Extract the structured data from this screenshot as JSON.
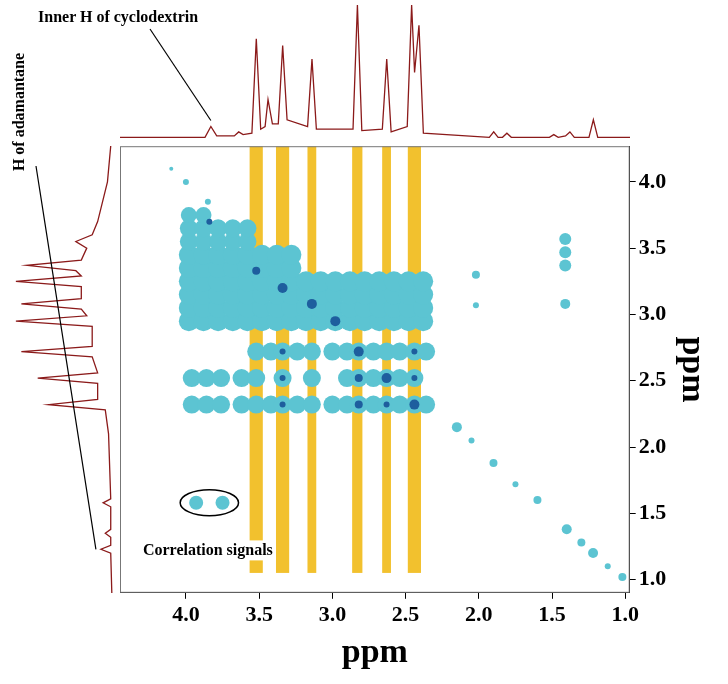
{
  "chart_data": {
    "type": "bubble",
    "x_label": "ppm",
    "y_label": "ppm",
    "xlim": [
      4.45,
      0.97
    ],
    "ylim": [
      0.9,
      4.27
    ],
    "xticks": [
      {
        "value": 4,
        "label": "4.0"
      },
      3.5,
      {
        "value": 3,
        "label": "3.0"
      },
      2.5,
      {
        "value": 2,
        "label": "2.0"
      },
      1.5,
      {
        "value": 1,
        "label": "1.0"
      }
    ],
    "yticks": [
      {
        "value": 1,
        "label": "1.0"
      },
      1.5,
      {
        "value": 2,
        "label": "2.0"
      },
      2.5,
      {
        "value": 3,
        "label": "3.0"
      },
      3.5,
      {
        "value": 4,
        "label": "4.0"
      }
    ],
    "grid": false,
    "series": [
      {
        "color": "#5cc4d2",
        "values": [
          [
            3.96,
            2.32,
            9
          ],
          [
            3.86,
            2.32,
            9
          ],
          [
            3.76,
            2.32,
            9
          ],
          [
            3.62,
            2.32,
            9
          ],
          [
            3.52,
            2.32,
            9
          ],
          [
            3.42,
            2.32,
            9
          ],
          [
            3.34,
            2.32,
            9
          ],
          [
            3.24,
            2.32,
            9
          ],
          [
            3.14,
            2.32,
            9
          ],
          [
            3,
            2.32,
            9
          ],
          [
            2.9,
            2.32,
            9
          ],
          [
            2.82,
            2.32,
            9
          ],
          [
            2.72,
            2.32,
            9
          ],
          [
            2.63,
            2.32,
            9
          ],
          [
            2.54,
            2.32,
            9
          ],
          [
            2.44,
            2.32,
            9
          ],
          [
            2.36,
            2.32,
            9
          ],
          [
            3.96,
            2.52,
            9
          ],
          [
            3.86,
            2.52,
            9
          ],
          [
            3.76,
            2.52,
            9
          ],
          [
            3.62,
            2.52,
            9
          ],
          [
            3.52,
            2.52,
            9
          ],
          [
            3.34,
            2.52,
            9
          ],
          [
            3.14,
            2.52,
            9
          ],
          [
            2.9,
            2.52,
            9
          ],
          [
            2.82,
            2.52,
            9
          ],
          [
            2.72,
            2.52,
            9
          ],
          [
            2.63,
            2.52,
            9
          ],
          [
            2.54,
            2.52,
            9
          ],
          [
            2.44,
            2.52,
            9
          ],
          [
            3.52,
            2.72,
            9
          ],
          [
            3.42,
            2.72,
            9
          ],
          [
            3.34,
            2.72,
            9
          ],
          [
            3.24,
            2.72,
            9
          ],
          [
            3.14,
            2.72,
            9
          ],
          [
            3,
            2.72,
            9
          ],
          [
            2.9,
            2.72,
            9
          ],
          [
            2.82,
            2.72,
            9
          ],
          [
            2.72,
            2.72,
            9
          ],
          [
            2.63,
            2.72,
            9
          ],
          [
            2.54,
            2.72,
            9
          ],
          [
            2.44,
            2.72,
            9
          ],
          [
            2.36,
            2.72,
            9
          ],
          [
            3.98,
            2.95,
            10
          ],
          [
            3.88,
            2.95,
            10
          ],
          [
            3.78,
            2.95,
            10
          ],
          [
            3.68,
            2.95,
            10
          ],
          [
            3.58,
            2.95,
            10
          ],
          [
            3.48,
            2.95,
            10
          ],
          [
            3.38,
            2.95,
            10
          ],
          [
            3.28,
            2.95,
            10
          ],
          [
            3.18,
            2.95,
            10
          ],
          [
            3.08,
            2.95,
            10
          ],
          [
            2.98,
            2.95,
            10
          ],
          [
            2.88,
            2.95,
            10
          ],
          [
            2.78,
            2.95,
            10
          ],
          [
            2.68,
            2.95,
            10
          ],
          [
            2.58,
            2.95,
            10
          ],
          [
            2.48,
            2.95,
            10
          ],
          [
            2.38,
            2.95,
            10
          ],
          [
            3.98,
            3.05,
            10
          ],
          [
            3.88,
            3.05,
            10
          ],
          [
            3.78,
            3.05,
            10
          ],
          [
            3.68,
            3.05,
            10
          ],
          [
            3.58,
            3.05,
            10
          ],
          [
            3.48,
            3.05,
            10
          ],
          [
            3.38,
            3.05,
            10
          ],
          [
            3.28,
            3.05,
            10
          ],
          [
            3.18,
            3.05,
            10
          ],
          [
            3.08,
            3.05,
            10
          ],
          [
            2.98,
            3.05,
            10
          ],
          [
            2.88,
            3.05,
            10
          ],
          [
            2.78,
            3.05,
            10
          ],
          [
            2.68,
            3.05,
            10
          ],
          [
            2.58,
            3.05,
            10
          ],
          [
            2.48,
            3.05,
            10
          ],
          [
            2.38,
            3.05,
            10
          ],
          [
            3.98,
            3.15,
            10
          ],
          [
            3.88,
            3.15,
            10
          ],
          [
            3.78,
            3.15,
            10
          ],
          [
            3.68,
            3.15,
            10
          ],
          [
            3.58,
            3.15,
            10
          ],
          [
            3.48,
            3.15,
            10
          ],
          [
            3.38,
            3.15,
            10
          ],
          [
            3.28,
            3.15,
            10
          ],
          [
            3.18,
            3.15,
            10
          ],
          [
            3.08,
            3.15,
            10
          ],
          [
            2.98,
            3.15,
            10
          ],
          [
            2.88,
            3.15,
            10
          ],
          [
            2.78,
            3.15,
            10
          ],
          [
            2.68,
            3.15,
            10
          ],
          [
            2.58,
            3.15,
            10
          ],
          [
            2.48,
            3.15,
            10
          ],
          [
            2.38,
            3.15,
            10
          ],
          [
            3.98,
            3.25,
            10
          ],
          [
            3.88,
            3.25,
            10
          ],
          [
            3.78,
            3.25,
            10
          ],
          [
            3.68,
            3.25,
            10
          ],
          [
            3.58,
            3.25,
            10
          ],
          [
            3.48,
            3.25,
            10
          ],
          [
            3.38,
            3.25,
            10
          ],
          [
            3.28,
            3.25,
            10
          ],
          [
            3.18,
            3.25,
            10
          ],
          [
            3.08,
            3.25,
            10
          ],
          [
            2.98,
            3.25,
            10
          ],
          [
            2.88,
            3.25,
            10
          ],
          [
            2.78,
            3.25,
            10
          ],
          [
            2.68,
            3.25,
            10
          ],
          [
            2.58,
            3.25,
            10
          ],
          [
            2.48,
            3.25,
            10
          ],
          [
            2.38,
            3.25,
            10
          ],
          [
            3.98,
            3.35,
            10
          ],
          [
            3.88,
            3.35,
            10
          ],
          [
            3.78,
            3.35,
            10
          ],
          [
            3.68,
            3.35,
            10
          ],
          [
            3.58,
            3.35,
            10
          ],
          [
            3.48,
            3.35,
            10
          ],
          [
            3.38,
            3.35,
            10
          ],
          [
            3.28,
            3.35,
            10
          ],
          [
            3.98,
            3.45,
            10
          ],
          [
            3.88,
            3.45,
            10
          ],
          [
            3.78,
            3.45,
            10
          ],
          [
            3.68,
            3.45,
            10
          ],
          [
            3.58,
            3.45,
            10
          ],
          [
            3.48,
            3.45,
            10
          ],
          [
            3.38,
            3.45,
            10
          ],
          [
            3.28,
            3.45,
            10
          ],
          [
            3.98,
            3.55,
            9
          ],
          [
            3.88,
            3.55,
            9
          ],
          [
            3.78,
            3.55,
            9
          ],
          [
            3.68,
            3.55,
            9
          ],
          [
            3.58,
            3.55,
            9
          ],
          [
            3.98,
            3.65,
            9
          ],
          [
            3.88,
            3.65,
            9
          ],
          [
            3.78,
            3.65,
            9
          ],
          [
            3.68,
            3.65,
            9
          ],
          [
            3.58,
            3.65,
            9
          ],
          [
            3.98,
            3.75,
            8
          ],
          [
            3.88,
            3.75,
            8
          ],
          [
            1.41,
            3.37,
            6
          ],
          [
            1.41,
            3.47,
            6
          ],
          [
            1.41,
            3.57,
            6
          ],
          [
            1.41,
            3.08,
            5
          ],
          [
            2.02,
            3.3,
            4
          ],
          [
            2.02,
            3.07,
            3
          ],
          [
            1.02,
            1.02,
            4
          ],
          [
            1.12,
            1.1,
            3
          ],
          [
            1.22,
            1.2,
            5
          ],
          [
            1.3,
            1.28,
            4
          ],
          [
            1.4,
            1.38,
            5
          ],
          [
            1.6,
            1.6,
            4
          ],
          [
            1.75,
            1.72,
            3
          ],
          [
            1.9,
            1.88,
            4
          ],
          [
            2.05,
            2.05,
            3
          ],
          [
            2.15,
            2.15,
            5
          ],
          [
            3.85,
            3.85,
            3
          ],
          [
            4,
            4,
            3
          ],
          [
            4.1,
            4.1,
            2
          ]
        ]
      },
      {
        "color": "#1e5e9e",
        "values": [
          [
            2.44,
            2.32,
            5
          ],
          [
            2.63,
            2.52,
            5
          ],
          [
            2.82,
            2.72,
            5
          ],
          [
            2.82,
            2.32,
            4
          ],
          [
            2.63,
            2.32,
            3
          ],
          [
            2.82,
            2.52,
            4
          ],
          [
            2.44,
            2.52,
            3
          ],
          [
            2.44,
            2.72,
            3
          ],
          [
            2.98,
            2.95,
            5
          ],
          [
            3.14,
            3.08,
            5
          ],
          [
            3.34,
            3.2,
            5
          ],
          [
            3.52,
            3.33,
            4
          ],
          [
            3.34,
            2.32,
            3
          ],
          [
            3.34,
            2.52,
            3
          ],
          [
            3.34,
            2.72,
            3
          ],
          [
            3.84,
            3.7,
            3
          ]
        ]
      }
    ],
    "correlation_signals": {
      "color": "#5cc4d2",
      "values": [
        [
          3.93,
          1.58,
          7
        ],
        [
          3.75,
          1.58,
          7
        ]
      ]
    },
    "stripes": {
      "color": "#f2c12e",
      "x": [
        3.52,
        3.34,
        3.14,
        2.83,
        2.63,
        2.44
      ],
      "width": [
        0.09,
        0.09,
        0.06,
        0.07,
        0.06,
        0.09
      ],
      "y_range": [
        1.05,
        4.27
      ]
    },
    "top_spectrum": {
      "color": "#8b1a1a",
      "ylim": [
        0,
        1
      ],
      "x": [
        4.45,
        3.87,
        3.83,
        3.79,
        3.67,
        3.64,
        3.61,
        3.55,
        3.52,
        3.49,
        3.46,
        3.44,
        3.41,
        3.37,
        3.34,
        3.31,
        3.17,
        3.14,
        3.11,
        2.86,
        2.83,
        2.8,
        2.66,
        2.63,
        2.6,
        2.49,
        2.46,
        2.44,
        2.41,
        2.38,
        1.93,
        1.9,
        1.87,
        1.84,
        1.81,
        1.78,
        1.52,
        1.49,
        1.46,
        1.41,
        1.38,
        1.35,
        1.25,
        1.22,
        1.19,
        0.97
      ],
      "values": [
        0.02,
        0.02,
        0.1,
        0.03,
        0.03,
        0.06,
        0.04,
        0.05,
        0.75,
        0.08,
        0.1,
        0.3,
        0.12,
        0.12,
        0.7,
        0.15,
        0.1,
        0.6,
        0.08,
        0.08,
        1,
        0.07,
        0.08,
        0.6,
        0.06,
        0.1,
        1,
        0.5,
        0.85,
        0.05,
        0.02,
        0.06,
        0.02,
        0.02,
        0.05,
        0.02,
        0.02,
        0.04,
        0.02,
        0.03,
        0.06,
        0.02,
        0.02,
        0.15,
        0.02,
        0.02
      ]
    },
    "left_spectrum": {
      "color": "#8b1a1a",
      "xlim": [
        1,
        0
      ],
      "y": [
        0.9,
        1.2,
        1.23,
        1.26,
        1.32,
        1.35,
        1.38,
        1.55,
        1.58,
        1.61,
        2.1,
        2.28,
        2.32,
        2.36,
        2.48,
        2.52,
        2.56,
        2.68,
        2.72,
        2.76,
        2.91,
        2.95,
        2.99,
        3.04,
        3.08,
        3.12,
        3.21,
        3.25,
        3.29,
        3.33,
        3.37,
        3.41,
        3.5,
        3.55,
        3.6,
        3.7,
        4,
        4.27
      ],
      "values": [
        0.02,
        0.03,
        0.12,
        0.03,
        0.03,
        0.08,
        0.03,
        0.03,
        0.1,
        0.03,
        0.05,
        0.08,
        0.6,
        0.15,
        0.15,
        0.7,
        0.15,
        0.2,
        0.85,
        0.2,
        0.2,
        0.9,
        0.25,
        0.3,
        0.85,
        0.3,
        0.3,
        0.9,
        0.3,
        0.35,
        0.8,
        0.3,
        0.25,
        0.35,
        0.2,
        0.15,
        0.06,
        0.03
      ]
    },
    "annotations": [
      {
        "text": "Correlation signals",
        "x": 3.85,
        "y": 1.22
      },
      {
        "text": "Inner H of cyclodextrin",
        "x": 3.83
      },
      {
        "text": "H of adamantane",
        "y": 1.23
      }
    ]
  }
}
